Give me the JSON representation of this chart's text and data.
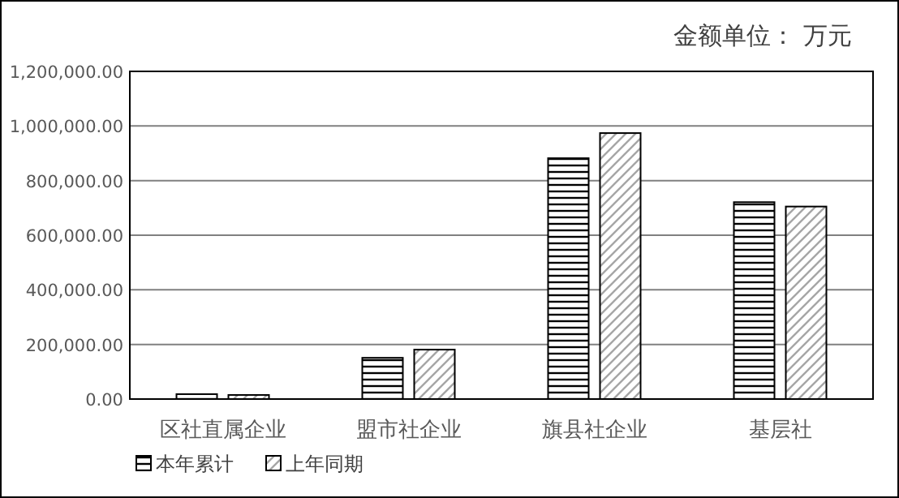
{
  "chart_data": {
    "type": "bar",
    "title": "金额单位： 万元",
    "categories": [
      "区社直属企业",
      "盟市社企业",
      "旗县社企业",
      "基层社"
    ],
    "series": [
      {
        "name": "本年累计",
        "color": "#000000",
        "values": [
          18000,
          151000,
          882000,
          721000
        ]
      },
      {
        "name": "上年同期",
        "color": "#000000",
        "values": [
          15000,
          181000,
          974000,
          705000
        ]
      }
    ],
    "ylim": [
      0,
      1200000
    ],
    "yticks": [
      {
        "value": 0,
        "label": "0.00"
      },
      {
        "value": 200000,
        "label": "200,000.00"
      },
      {
        "value": 400000,
        "label": "400,000.00"
      },
      {
        "value": 600000,
        "label": "600,000.00"
      },
      {
        "value": 800000,
        "label": "800,000.00"
      },
      {
        "value": 1000000,
        "label": "1,000,000.00"
      },
      {
        "value": 1200000,
        "label": "1,200,000.00"
      }
    ],
    "grid": "y",
    "legend": "bottom left"
  }
}
